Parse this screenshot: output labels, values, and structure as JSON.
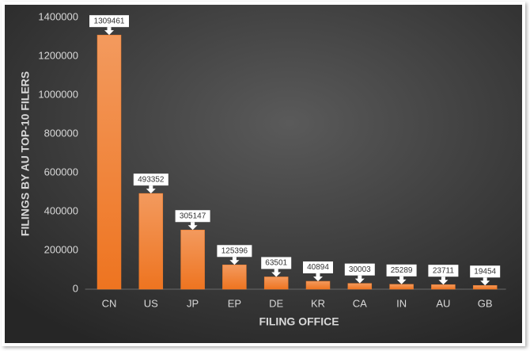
{
  "chart_data": {
    "type": "bar",
    "x_label": "FILING OFFICE",
    "y_label": "FILINGS BY AU TOP-10 FILERS",
    "categories": [
      "CN",
      "US",
      "JP",
      "EP",
      "DE",
      "KR",
      "CA",
      "IN",
      "AU",
      "GB"
    ],
    "values": [
      1309461,
      493352,
      305147,
      125396,
      63501,
      40894,
      30003,
      25289,
      23711,
      19454
    ],
    "color": "#f07a28",
    "ylim": [
      0,
      1400000
    ],
    "yticks": [
      0,
      200000,
      400000,
      600000,
      800000,
      1000000,
      1200000,
      1400000
    ],
    "grid": false
  }
}
